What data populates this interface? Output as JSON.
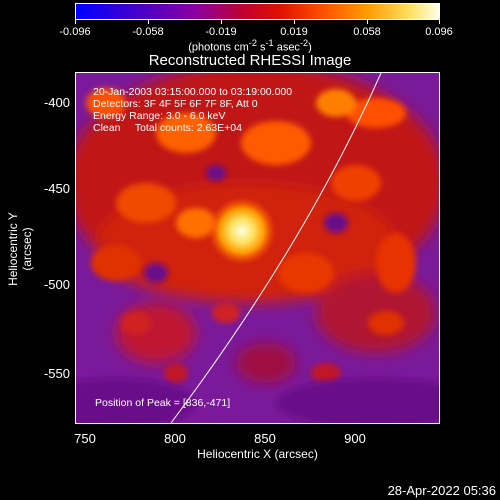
{
  "colorbar": {
    "tick_labels": [
      "-0.096",
      "-0.058",
      "-0.019",
      "0.019",
      "0.058",
      "0.096"
    ],
    "units_html": "(photons cm<sup>-2</sup> s<sup>-1</sup> asec<sup>-2</sup>)"
  },
  "title": "Reconstructed RHESSI Image",
  "info": {
    "line1": "20-Jan-2003 03:15:00.000 to 03:19:00.000",
    "line2": "Detectors: 3F 4F 5F 6F 7F 8F, Att 0",
    "line3": "Energy Range: 3.0 - 6.0 keV",
    "line4": "Clean     Total counts: 2.63E+04"
  },
  "peak_text": "Position of Peak = [836,-471]",
  "axes": {
    "xlabel": "Heliocentric X (arcsec)",
    "ylabel": "Heliocentric Y (arcsec)",
    "xticks": [
      "750",
      "800",
      "850",
      "900"
    ],
    "yticks": [
      "-400",
      "-450",
      "-500",
      "-550"
    ]
  },
  "date": "28-Apr-2022 05:36",
  "colors": {
    "background": "#000000",
    "frame": "#ffffff"
  }
}
